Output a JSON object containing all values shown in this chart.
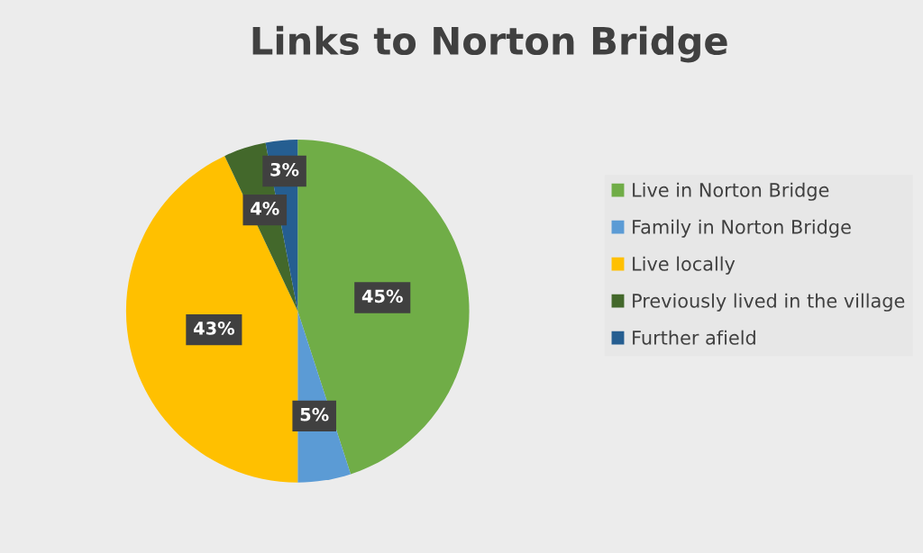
{
  "chart_data": {
    "type": "pie",
    "title": "Links to Norton Bridge",
    "categories": [
      "Live in Norton Bridge",
      "Family in Norton Bridge",
      "Live locally",
      "Previously lived in the village",
      "Further afield"
    ],
    "values": [
      45,
      5,
      43,
      4,
      3
    ],
    "colors": [
      "#70ad47",
      "#5b9bd5",
      "#ffc000",
      "#43682b",
      "#255e91"
    ],
    "value_labels": [
      "45%",
      "5%",
      "43%",
      "4%",
      "3%"
    ],
    "legend": "right"
  }
}
